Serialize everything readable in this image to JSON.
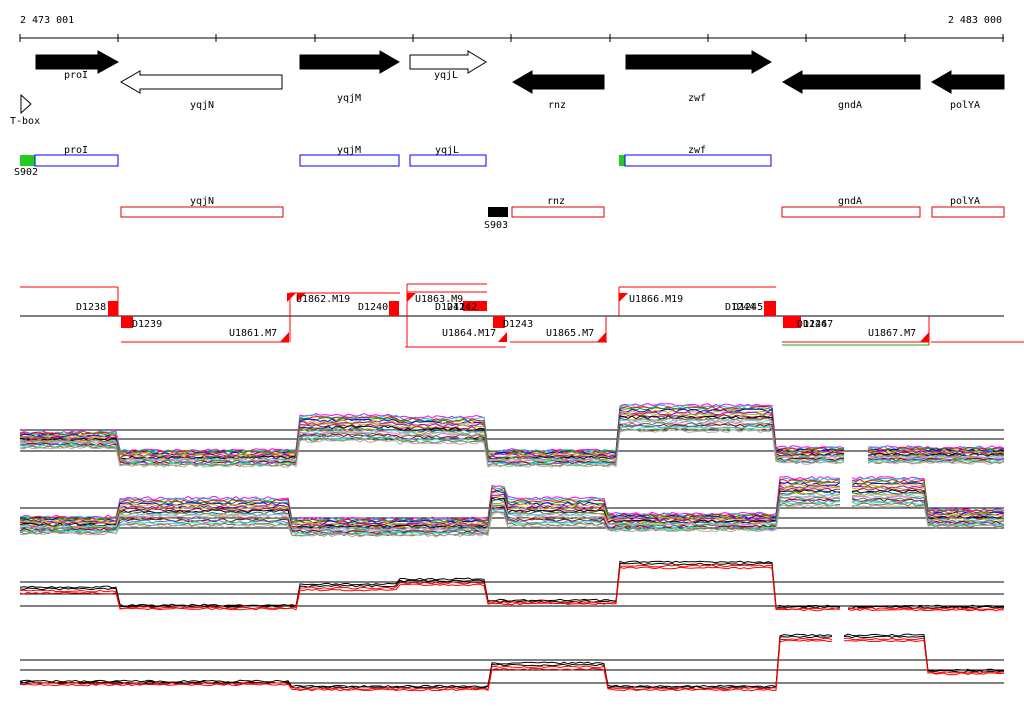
{
  "ruler": {
    "start_label": "2 473 001",
    "end_label": "2 483 000"
  },
  "genes": [
    {
      "name": "proI",
      "strand": "+",
      "filled": true
    },
    {
      "name": "yqjN",
      "strand": "-",
      "filled": false
    },
    {
      "name": "yqjM",
      "strand": "+",
      "filled": true
    },
    {
      "name": "yqjL",
      "strand": "+",
      "filled": false
    },
    {
      "name": "rnz",
      "strand": "-",
      "filled": true
    },
    {
      "name": "zwf",
      "strand": "+",
      "filled": true
    },
    {
      "name": "gndA",
      "strand": "-",
      "filled": true
    },
    {
      "name": "polYA",
      "strand": "-",
      "filled": true
    }
  ],
  "regulatory": [
    {
      "name": "T-box"
    },
    {
      "name": "S902",
      "color": "#22cc22"
    },
    {
      "name": "S903",
      "color": "#000000"
    }
  ],
  "forward_boxes": [
    "proI",
    "yqjM",
    "yqjL",
    "zwf"
  ],
  "reverse_boxes": [
    "yqjN",
    "rnz",
    "gndA",
    "polYA"
  ],
  "transcript_labels": [
    "D1238",
    "D1239",
    "U1861.M7",
    "U1862.M19",
    "D1240",
    "U1863.M9",
    "D1241",
    "D1242",
    "U1864.M17",
    "D1243",
    "U1865.M7",
    "U1866.M19",
    "D1244",
    "D1245",
    "D1246",
    "D1247",
    "U1867.M7"
  ],
  "colors": {
    "forward_box": "#0000ff",
    "reverse_box": "#dd0000",
    "marker": "#ff0000",
    "reference_line": "#000000"
  }
}
